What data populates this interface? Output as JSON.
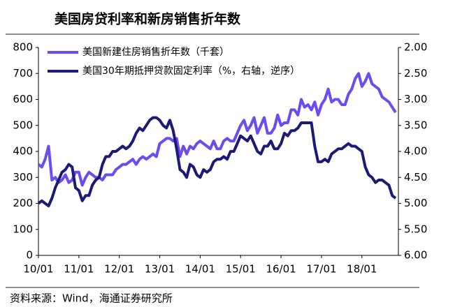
{
  "chart_data": {
    "type": "line",
    "title": "美国房贷利率和新房销售折年数",
    "source": "资料来源：Wind，海通证券研究所",
    "categories": [
      "10/01",
      null,
      null,
      null,
      null,
      null,
      null,
      null,
      null,
      null,
      null,
      null,
      "11/01",
      null,
      null,
      null,
      null,
      null,
      null,
      null,
      null,
      null,
      null,
      null,
      "12/01",
      null,
      null,
      null,
      null,
      null,
      null,
      null,
      null,
      null,
      null,
      null,
      "13/01",
      null,
      null,
      null,
      null,
      null,
      null,
      null,
      null,
      null,
      null,
      null,
      "14/01",
      null,
      null,
      null,
      null,
      null,
      null,
      null,
      null,
      null,
      null,
      null,
      "15/01",
      null,
      null,
      null,
      null,
      null,
      null,
      null,
      null,
      null,
      null,
      null,
      "16/01",
      null,
      null,
      null,
      null,
      null,
      null,
      null,
      null,
      null,
      null,
      null,
      "17/01",
      null,
      null,
      null,
      null,
      null,
      null,
      null,
      null,
      null,
      null,
      null,
      "18/01",
      null,
      null,
      null,
      null,
      null,
      null,
      null,
      null,
      null,
      null
    ],
    "series": [
      {
        "name": "美国新建住房销售折年数（千套）",
        "color": "#6a4cf2",
        "axis": "y",
        "values": [
          350,
          340,
          370,
          420,
          290,
          300,
          280,
          290,
          310,
          280,
          290,
          320,
          320,
          270,
          300,
          320,
          310,
          300,
          300,
          290,
          310,
          310,
          310,
          330,
          340,
          350,
          350,
          360,
          370,
          350,
          370,
          380,
          370,
          380,
          390,
          380,
          430,
          440,
          450,
          450,
          440,
          450,
          380,
          420,
          390,
          420,
          410,
          430,
          440,
          430,
          420,
          410,
          440,
          410,
          410,
          440,
          450,
          440,
          440,
          470,
          500,
          520,
          480,
          500,
          530,
          470,
          500,
          530,
          470,
          470,
          490,
          540,
          500,
          510,
          510,
          560,
          560,
          540,
          600,
          570,
          580,
          560,
          590,
          540,
          580,
          600,
          640,
          590,
          600,
          600,
          580,
          580,
          620,
          640,
          680,
          700,
          650,
          670,
          700,
          660,
          650,
          640,
          610,
          600,
          590,
          570,
          550
        ]
      },
      {
        "name": "美国30年期抵押贷款固定利率（%，右轴，逆序）",
        "color": "#1c1a78",
        "axis": "y2",
        "values": [
          5.0,
          4.95,
          5.0,
          5.05,
          4.9,
          4.7,
          4.55,
          4.4,
          4.35,
          4.25,
          4.3,
          4.7,
          4.75,
          4.95,
          4.85,
          4.85,
          4.65,
          4.55,
          4.5,
          4.25,
          4.1,
          4.1,
          4.0,
          4.0,
          3.95,
          3.9,
          3.95,
          3.9,
          3.8,
          3.65,
          3.55,
          3.6,
          3.5,
          3.4,
          3.35,
          3.35,
          3.4,
          3.5,
          3.55,
          3.4,
          3.6,
          3.95,
          4.35,
          4.4,
          4.5,
          4.25,
          4.3,
          4.45,
          4.5,
          4.35,
          4.4,
          4.35,
          4.2,
          4.15,
          4.15,
          4.1,
          4.15,
          4.0,
          4.0,
          3.85,
          3.7,
          3.75,
          3.8,
          3.7,
          3.85,
          4.0,
          4.05,
          3.9,
          3.9,
          3.8,
          3.95,
          3.95,
          3.85,
          3.65,
          3.7,
          3.6,
          3.6,
          3.55,
          3.45,
          3.45,
          3.45,
          3.45,
          3.9,
          4.2,
          4.2,
          4.15,
          4.2,
          4.05,
          4.0,
          3.95,
          3.95,
          3.9,
          3.85,
          3.9,
          3.9,
          3.95,
          4.0,
          4.3,
          4.45,
          4.5,
          4.6,
          4.55,
          4.55,
          4.6,
          4.65,
          4.85,
          4.9
        ]
      }
    ],
    "ylim": [
      0,
      800
    ],
    "yticks": [
      0,
      100,
      200,
      300,
      400,
      500,
      600,
      700,
      800
    ],
    "y2lim": [
      2,
      6
    ],
    "y2_inverted": true,
    "y2ticks": [
      {
        "value": 2,
        "label": "2.00"
      },
      {
        "value": 2.5,
        "label": "2.50"
      },
      {
        "value": 3,
        "label": "3.00"
      },
      {
        "value": 3.5,
        "label": "3.50"
      },
      {
        "value": 4,
        "label": "4.00"
      },
      {
        "value": 4.5,
        "label": "4.50"
      },
      {
        "value": 5,
        "label": "5.00"
      },
      {
        "value": 5.5,
        "label": "5.50"
      },
      {
        "value": 6,
        "label": "6.00"
      }
    ],
    "legend": "upper-left"
  }
}
